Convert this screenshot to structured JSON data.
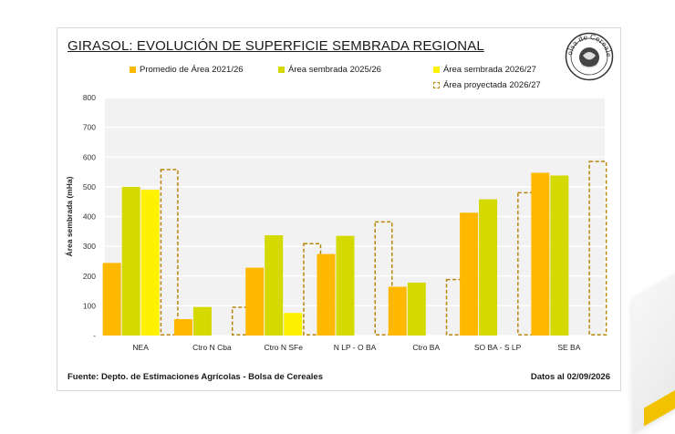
{
  "title": "GIRASOL: EVOLUCIÓN DE SUPERFICIE SEMBRADA REGIONAL",
  "legend": [
    {
      "label": "Promedio de Área 2021/26",
      "color": "#ffb800"
    },
    {
      "label": "Área sembrada 2025/26",
      "color": "#d4d900"
    },
    {
      "label": "Área sembrada 2026/27",
      "color": "#fff200"
    },
    {
      "label": "Área proyectada 2026/27",
      "color": "#b8860b"
    }
  ],
  "seal_text": "Bolsa de Cereales",
  "footer_left": "Fuente: Depto. de Estimaciones Agrícolas - Bolsa de Cereales",
  "footer_right": "Datos al 02/09/2026",
  "chart_data": {
    "type": "bar",
    "title": "GIRASOL: EVOLUCIÓN DE SUPERFICIE SEMBRADA REGIONAL",
    "ylabel": "Área sembrada (mHa)",
    "xlabel": "",
    "ylim": [
      0,
      800
    ],
    "yticks": [
      0,
      100,
      200,
      300,
      400,
      500,
      600,
      700,
      800
    ],
    "ytick_labels": [
      "-",
      "100",
      "200",
      "300",
      "400",
      "500",
      "600",
      "700",
      "800"
    ],
    "grid": true,
    "legend_position": "top",
    "categories": [
      "NEA",
      "Ctro N Cba",
      "Ctro N SFe",
      "N LP - O BA",
      "Ctro BA",
      "SO BA - S LP",
      "SE BA"
    ],
    "series": [
      {
        "name": "Promedio de Área 2021/26",
        "color": "#ffb800",
        "values": [
          244,
          55,
          228,
          274,
          164,
          413,
          547
        ]
      },
      {
        "name": "Área sembrada 2025/26",
        "color": "#d4d900",
        "values": [
          500,
          96,
          337,
          335,
          178,
          458,
          538
        ]
      },
      {
        "name": "Área sembrada 2026/27",
        "color": "#fff200",
        "values": [
          490,
          0,
          76,
          0,
          0,
          0,
          0
        ]
      },
      {
        "name": "Área proyectada 2026/27",
        "color": "#b8860b",
        "style": "dashed-outline",
        "values": [
          558,
          95,
          309,
          382,
          188,
          480,
          585
        ]
      }
    ]
  }
}
